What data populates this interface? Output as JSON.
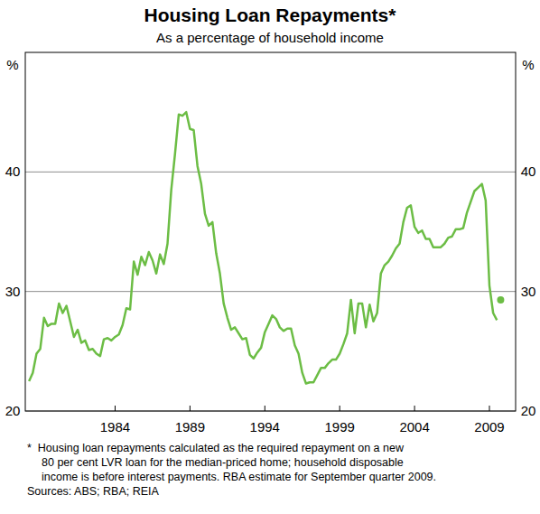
{
  "chart_data": {
    "type": "line",
    "title": "Housing Loan Repayments*",
    "subtitle": "As a percentage of household income",
    "y_unit": "%",
    "notes": [
      "*  Housing loan repayments calculated as the required repayment on a new",
      "80 per cent LVR loan for the median-priced home; household disposable",
      "income is before interest payments. RBA estimate for September quarter 2009."
    ],
    "sources": "Sources: ABS; RBA; REIA",
    "x": [
      1978.25,
      1978.5,
      1978.75,
      1979,
      1979.25,
      1979.5,
      1979.75,
      1980,
      1980.25,
      1980.5,
      1980.75,
      1981,
      1981.25,
      1981.5,
      1981.75,
      1982,
      1982.25,
      1982.5,
      1982.75,
      1983,
      1983.25,
      1983.5,
      1983.75,
      1984,
      1984.25,
      1984.5,
      1984.75,
      1985,
      1985.25,
      1985.5,
      1985.75,
      1986,
      1986.25,
      1986.5,
      1986.75,
      1987,
      1987.25,
      1987.5,
      1987.75,
      1988,
      1988.25,
      1988.5,
      1988.75,
      1989,
      1989.25,
      1989.5,
      1989.75,
      1990,
      1990.25,
      1990.5,
      1990.75,
      1991,
      1991.25,
      1991.5,
      1991.75,
      1992,
      1992.25,
      1992.5,
      1992.75,
      1993,
      1993.25,
      1993.5,
      1993.75,
      1994,
      1994.25,
      1994.5,
      1994.75,
      1995,
      1995.25,
      1995.5,
      1995.75,
      1996,
      1996.25,
      1996.5,
      1996.75,
      1997,
      1997.25,
      1997.5,
      1997.75,
      1998,
      1998.25,
      1998.5,
      1998.75,
      1999,
      1999.25,
      1999.5,
      1999.75,
      2000,
      2000.25,
      2000.5,
      2000.75,
      2001,
      2001.25,
      2001.5,
      2001.75,
      2002,
      2002.25,
      2002.5,
      2002.75,
      2003,
      2003.25,
      2003.5,
      2003.75,
      2004,
      2004.25,
      2004.5,
      2004.75,
      2005,
      2005.25,
      2005.5,
      2005.75,
      2006,
      2006.25,
      2006.5,
      2006.75,
      2007,
      2007.25,
      2007.5,
      2007.75,
      2008,
      2008.25,
      2008.5,
      2008.75,
      2009,
      2009.25,
      2009.5,
      2009.75
    ],
    "series": [
      {
        "color": "#6cbd45",
        "line_style": "solid",
        "marker": "none",
        "values": [
          22.5,
          23.2,
          24.8,
          25.2,
          27.8,
          27.1,
          27.3,
          27.3,
          29.0,
          28.2,
          28.8,
          27.5,
          26.2,
          26.8,
          25.7,
          25.9,
          25.1,
          25.2,
          24.8,
          24.6,
          26.0,
          26.1,
          25.9,
          26.2,
          26.4,
          27.2,
          28.6,
          28.5,
          32.5,
          31.4,
          32.9,
          32.2,
          33.3,
          32.6,
          31.5,
          33.1,
          32.3,
          34.0,
          38.5,
          41.5,
          44.8,
          44.7,
          45.0,
          43.6,
          43.5,
          40.5,
          39.0,
          36.5,
          35.5,
          35.8,
          33.2,
          31.5,
          29.0,
          27.8,
          26.8,
          27.0,
          26.5,
          26.0,
          26.1,
          24.7,
          24.4,
          24.9,
          25.3,
          26.6,
          27.3,
          28.0,
          27.7,
          27.0,
          26.7,
          26.9,
          26.9,
          25.5,
          24.8,
          23.2,
          22.3,
          22.4,
          22.4,
          23.0,
          23.6,
          23.6,
          24.0,
          24.3,
          24.3,
          24.8,
          25.6,
          26.5,
          29.3,
          26.5,
          29.0,
          29.0,
          27.0,
          28.9,
          27.5,
          28.2,
          31.5,
          32.2,
          32.5,
          33.0,
          33.6,
          34.0,
          35.8,
          37.0,
          37.2,
          35.4,
          34.9,
          35.1,
          34.4,
          34.4,
          33.7,
          33.7,
          33.7,
          34.0,
          34.5,
          34.6,
          35.2,
          35.2,
          35.3,
          36.6,
          37.5,
          38.4,
          38.7,
          39.0,
          37.6,
          30.5,
          28.2,
          27.6,
          null
        ]
      },
      {
        "color": "#6cbd45",
        "line_style": "none",
        "marker": "circle",
        "values": [
          null,
          null,
          null,
          null,
          null,
          null,
          null,
          null,
          null,
          null,
          null,
          null,
          null,
          null,
          null,
          null,
          null,
          null,
          null,
          null,
          null,
          null,
          null,
          null,
          null,
          null,
          null,
          null,
          null,
          null,
          null,
          null,
          null,
          null,
          null,
          null,
          null,
          null,
          null,
          null,
          null,
          null,
          null,
          null,
          null,
          null,
          null,
          null,
          null,
          null,
          null,
          null,
          null,
          null,
          null,
          null,
          null,
          null,
          null,
          null,
          null,
          null,
          null,
          null,
          null,
          null,
          null,
          null,
          null,
          null,
          null,
          null,
          null,
          null,
          null,
          null,
          null,
          null,
          null,
          null,
          null,
          null,
          null,
          null,
          null,
          null,
          null,
          null,
          null,
          null,
          null,
          null,
          null,
          null,
          null,
          null,
          null,
          null,
          null,
          null,
          null,
          null,
          null,
          null,
          null,
          null,
          null,
          null,
          null,
          null,
          null,
          null,
          null,
          null,
          null,
          null,
          null,
          null,
          null,
          null,
          null,
          null,
          null,
          null,
          null,
          null,
          29.3
        ]
      }
    ],
    "xlim": [
      1978,
      2010.75
    ],
    "xticks": [
      1984,
      1989,
      1994,
      1999,
      2004,
      2009
    ],
    "ylim": [
      20,
      50
    ],
    "yticks": [
      20,
      30,
      40
    ],
    "grid": true
  }
}
